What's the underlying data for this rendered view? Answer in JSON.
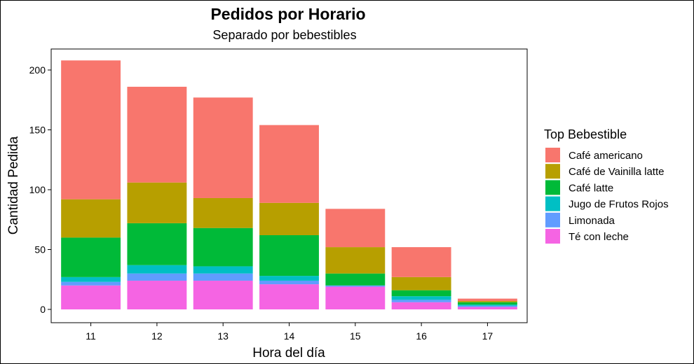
{
  "chart_data": {
    "type": "bar",
    "stacked": true,
    "title": "Pedidos por Horario",
    "subtitle": "Separado por bebestibles",
    "xlabel": "Hora del día",
    "ylabel": "Cantidad Pedida",
    "categories": [
      "11",
      "12",
      "13",
      "14",
      "15",
      "16",
      "17"
    ],
    "ylim": [
      -11,
      218
    ],
    "yticks": [
      0,
      50,
      100,
      150,
      200
    ],
    "grid": false,
    "legend": {
      "title": "Top Bebestible",
      "position": "right"
    },
    "series": [
      {
        "name": "Té con leche",
        "color": "#F564E3",
        "values": [
          20,
          24,
          24,
          21,
          19,
          6,
          2
        ]
      },
      {
        "name": "Limonada",
        "color": "#619CFF",
        "values": [
          3,
          6,
          6,
          3,
          1,
          2,
          1
        ]
      },
      {
        "name": "Jugo de Frutos Rojos",
        "color": "#00BFC4",
        "values": [
          4,
          7,
          6,
          4,
          0,
          3,
          1
        ]
      },
      {
        "name": "Café latte",
        "color": "#00BA38",
        "values": [
          33,
          35,
          32,
          34,
          10,
          5,
          2
        ]
      },
      {
        "name": "Café de Vainilla latte",
        "color": "#B79F00",
        "values": [
          32,
          34,
          25,
          27,
          22,
          11,
          1
        ]
      },
      {
        "name": "Café americano",
        "color": "#F8766D",
        "values": [
          116,
          80,
          84,
          65,
          32,
          25,
          2
        ]
      }
    ]
  }
}
